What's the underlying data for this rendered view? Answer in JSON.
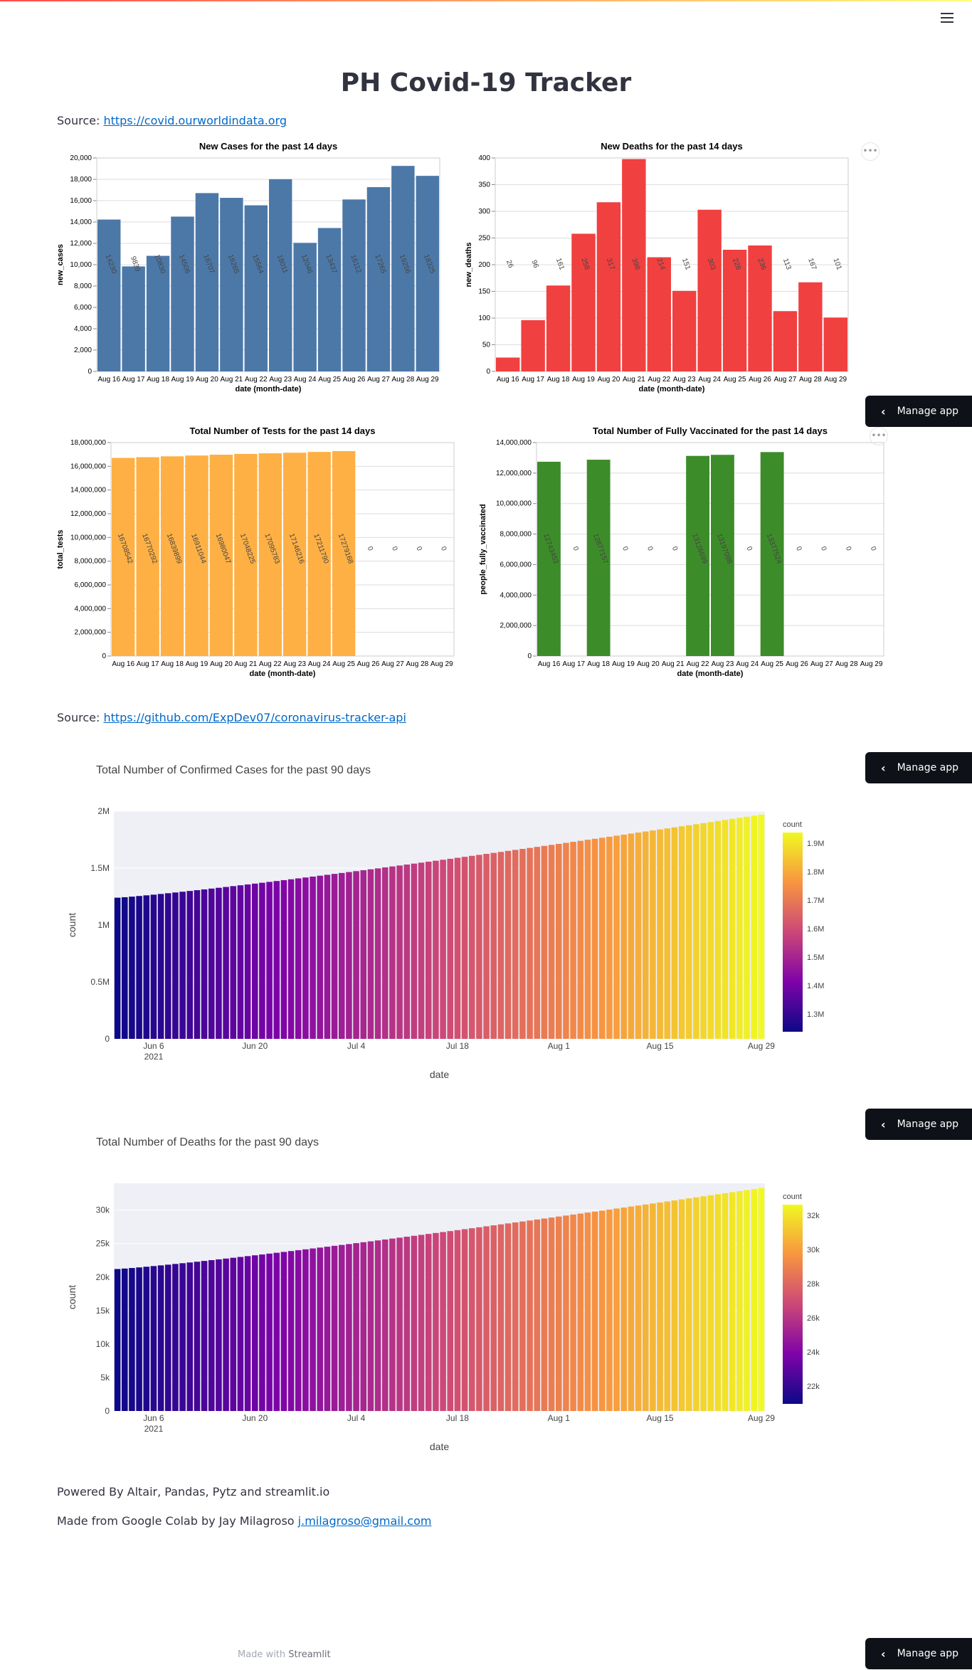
{
  "title": "PH Covid-19 Tracker",
  "menu_icon": "hamburger-icon",
  "accent_gradient": [
    "#ff4b4b",
    "#fffd80"
  ],
  "source1": {
    "label": "Source: ",
    "link": "https://covid.ourworldindata.org"
  },
  "source2": {
    "label": "Source: ",
    "link": "https://github.com/ExpDev07/coronavirus-tracker-api"
  },
  "manage_app_label": "Manage app",
  "more_icon": "ellipsis-icon",
  "footer": {
    "powered": "Powered By Altair, Pandas, Pytz and streamlit.io",
    "made_prefix": "Made from Google Colab by Jay Milagroso ",
    "email": "j.milagroso@gmail.com",
    "made_with_prefix": "Made with ",
    "made_with_brand": "Streamlit"
  },
  "chart_data": [
    {
      "type": "bar",
      "title": "New Cases for the past 14 days",
      "xlabel": "date (month-date)",
      "ylabel": "new_cases",
      "color": "#4c78a8",
      "categories": [
        "Aug 16",
        "Aug 17",
        "Aug 18",
        "Aug 19",
        "Aug 20",
        "Aug 21",
        "Aug 22",
        "Aug 23",
        "Aug 24",
        "Aug 25",
        "Aug 26",
        "Aug 27",
        "Aug 28",
        "Aug 29"
      ],
      "values": [
        14230,
        9839,
        10830,
        14506,
        16707,
        16265,
        15564,
        18011,
        12046,
        13437,
        16112,
        17265,
        19256,
        18325
      ],
      "ylim": [
        0,
        20000
      ],
      "yticks": [
        0,
        2000,
        4000,
        6000,
        8000,
        10000,
        12000,
        14000,
        16000,
        18000,
        20000
      ],
      "grid": true
    },
    {
      "type": "bar",
      "title": "New Deaths for the past 14 days",
      "xlabel": "date (month-date)",
      "ylabel": "new_deaths",
      "color": "#f14040",
      "categories": [
        "Aug 16",
        "Aug 17",
        "Aug 18",
        "Aug 19",
        "Aug 20",
        "Aug 21",
        "Aug 22",
        "Aug 23",
        "Aug 24",
        "Aug 25",
        "Aug 26",
        "Aug 27",
        "Aug 28",
        "Aug 29"
      ],
      "values": [
        26,
        96,
        161,
        258,
        317,
        398,
        214,
        151,
        303,
        228,
        236,
        113,
        167,
        101
      ],
      "ylim": [
        0,
        400
      ],
      "yticks": [
        0,
        50,
        100,
        150,
        200,
        250,
        300,
        350,
        400
      ],
      "grid": true
    },
    {
      "type": "bar",
      "title": "Total Number of Tests for the past 14 days",
      "xlabel": "date (month-date)",
      "ylabel": "total_tests",
      "color": "#feb045",
      "categories": [
        "Aug 16",
        "Aug 17",
        "Aug 18",
        "Aug 19",
        "Aug 20",
        "Aug 21",
        "Aug 22",
        "Aug 23",
        "Aug 24",
        "Aug 25",
        "Aug 26",
        "Aug 27",
        "Aug 28",
        "Aug 29"
      ],
      "values": [
        16708542,
        16770292,
        16839899,
        16911044,
        16980047,
        17048225,
        17095783,
        17146216,
        17211790,
        17279168,
        0,
        0,
        0,
        0
      ],
      "ylim": [
        0,
        18000000
      ],
      "yticks": [
        0,
        2000000,
        4000000,
        6000000,
        8000000,
        10000000,
        12000000,
        14000000,
        16000000,
        18000000
      ],
      "grid": true
    },
    {
      "type": "bar",
      "title": "Total Number of Fully Vaccinated for the past 14 days",
      "xlabel": "date (month-date)",
      "ylabel": "people_fully_vaccinated",
      "color": "#3d8c2a",
      "categories": [
        "Aug 16",
        "Aug 17",
        "Aug 18",
        "Aug 19",
        "Aug 20",
        "Aug 21",
        "Aug 22",
        "Aug 23",
        "Aug 24",
        "Aug 25",
        "Aug 26",
        "Aug 27",
        "Aug 28",
        "Aug 29"
      ],
      "values": [
        12743453,
        0,
        12877157,
        0,
        0,
        0,
        13126699,
        13197098,
        0,
        13377524,
        0,
        0,
        0,
        0
      ],
      "ylim": [
        0,
        14000000
      ],
      "yticks": [
        0,
        2000000,
        4000000,
        6000000,
        8000000,
        10000000,
        12000000,
        14000000
      ],
      "grid": true
    },
    {
      "type": "bar",
      "title": "Total Number of Confirmed Cases for the past 90 days",
      "xlabel": "date",
      "ylabel": "count",
      "date_start": "2021-06-01",
      "date_end": "2021-08-29",
      "value_start": 1240000,
      "value_end": 1970000,
      "ylim": [
        0,
        2000000
      ],
      "ytick_labels": [
        "0",
        "0.5M",
        "1M",
        "1.5M",
        "2M"
      ],
      "xtick_labels": [
        "Jun 6",
        "Jun 20",
        "Jul 4",
        "Jul 18",
        "Aug 1",
        "Aug 15",
        "Aug 29"
      ],
      "xtick_year": "2021",
      "colorscale": "plasma",
      "colorbar": {
        "title": "count",
        "ticks": [
          "1.3M",
          "1.4M",
          "1.5M",
          "1.6M",
          "1.7M",
          "1.8M",
          "1.9M"
        ]
      }
    },
    {
      "type": "bar",
      "title": "Total Number of Deaths for the past 90 days",
      "xlabel": "date",
      "ylabel": "count",
      "date_start": "2021-06-01",
      "date_end": "2021-08-29",
      "value_start": 21200,
      "value_end": 33300,
      "ylim": [
        0,
        34000
      ],
      "ytick_labels": [
        "0",
        "5k",
        "10k",
        "15k",
        "20k",
        "25k",
        "30k"
      ],
      "xtick_labels": [
        "Jun 6",
        "Jun 20",
        "Jul 4",
        "Jul 18",
        "Aug 1",
        "Aug 15",
        "Aug 29"
      ],
      "xtick_year": "2021",
      "colorscale": "plasma",
      "colorbar": {
        "title": "count",
        "ticks": [
          "22k",
          "24k",
          "26k",
          "28k",
          "30k",
          "32k"
        ]
      }
    }
  ]
}
